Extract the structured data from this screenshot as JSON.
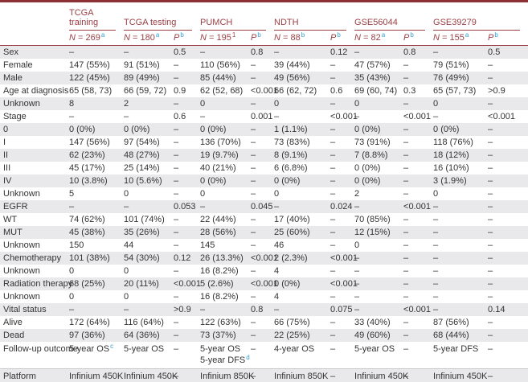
{
  "colors": {
    "maroon": "#9a4045",
    "maroon_dark": "#8c3136",
    "superscript_blue": "#2e9fd4",
    "stripe_gray": "#e9e9eb",
    "text": "#333333"
  },
  "table": {
    "p_header": {
      "label": "P",
      "sup": "b"
    },
    "groups": [
      {
        "name": "TCGA training",
        "n": "N = 269",
        "sup": "a",
        "sup_style": "blue",
        "has_p": false
      },
      {
        "name": "TCGA testing",
        "n": "N = 180",
        "sup": "a",
        "sup_style": "blue",
        "has_p": true
      },
      {
        "name": "PUMCH",
        "n": "N = 195",
        "sup": "1",
        "sup_style": "red",
        "has_p": true
      },
      {
        "name": "NDTH",
        "n": "N = 88",
        "sup": "b",
        "sup_style": "blue",
        "has_p": true
      },
      {
        "name": "GSE56044",
        "n": "N = 82",
        "sup": "a",
        "sup_style": "blue",
        "has_p": true
      },
      {
        "name": "GSE39279",
        "n": "N = 155",
        "sup": "a",
        "sup_style": "blue",
        "has_p": true
      }
    ],
    "rows": [
      {
        "label": "Sex",
        "cells": [
          "–",
          "–",
          "0.5",
          "–",
          "0.8",
          "–",
          "0.12",
          "–",
          "0.8",
          "–",
          "0.5"
        ]
      },
      {
        "label": "Female",
        "cells": [
          "147 (55%)",
          "91 (51%)",
          "–",
          "110 (56%)",
          "–",
          "39 (44%)",
          "–",
          "47 (57%)",
          "–",
          "79 (51%)",
          "–"
        ]
      },
      {
        "label": "Male",
        "cells": [
          "122 (45%)",
          "89 (49%)",
          "–",
          "85 (44%)",
          "–",
          "49 (56%)",
          "–",
          "35 (43%)",
          "–",
          "76 (49%)",
          "–"
        ]
      },
      {
        "label": "Age at diagnosis",
        "cells": [
          "65 (58, 73)",
          "66 (59, 72)",
          "0.9",
          "62 (52, 68)",
          "<0.001",
          "66 (62, 72)",
          "0.6",
          "69 (60, 74)",
          "0.3",
          "65 (57, 73)",
          ">0.9"
        ]
      },
      {
        "label": "Unknown",
        "cells": [
          "8",
          "2",
          "–",
          "0",
          "–",
          "0",
          "–",
          "0",
          "–",
          "0",
          "–"
        ]
      },
      {
        "label": "Stage",
        "cells": [
          "–",
          "–",
          "0.6",
          "–",
          "0.001",
          "–",
          "<0.001",
          "–",
          "<0.001",
          "–",
          "<0.001"
        ]
      },
      {
        "label": "0",
        "cells": [
          "0 (0%)",
          "0 (0%)",
          "–",
          "0 (0%)",
          "–",
          "1 (1.1%)",
          "–",
          "0 (0%)",
          "–",
          "0 (0%)",
          "–"
        ]
      },
      {
        "label": "I",
        "cells": [
          "147 (56%)",
          "97 (54%)",
          "–",
          "136 (70%)",
          "–",
          "73 (83%)",
          "–",
          "73 (91%)",
          "–",
          "118 (76%)",
          "–"
        ]
      },
      {
        "label": "II",
        "cells": [
          "62 (23%)",
          "48 (27%)",
          "–",
          "19 (9.7%)",
          "–",
          "8 (9.1%)",
          "–",
          "7 (8.8%)",
          "–",
          "18 (12%)",
          "–"
        ]
      },
      {
        "label": "III",
        "cells": [
          "45 (17%)",
          "25 (14%)",
          "–",
          "40 (21%)",
          "–",
          "6 (6.8%)",
          "–",
          "0 (0%)",
          "–",
          "16 (10%)",
          "–"
        ]
      },
      {
        "label": "IV",
        "cells": [
          "10 (3.8%)",
          "10 (5.6%)",
          "–",
          "0 (0%)",
          "–",
          "0 (0%)",
          "–",
          "0 (0%)",
          "–",
          "3 (1.9%)",
          "–"
        ]
      },
      {
        "label": "Unknown",
        "cells": [
          "5",
          "0",
          "–",
          "0",
          "–",
          "0",
          "–",
          "2",
          "–",
          "0",
          "–"
        ]
      },
      {
        "label": "EGFR",
        "cells": [
          "–",
          "–",
          "0.053",
          "–",
          "0.045",
          "–",
          "0.024",
          "–",
          "<0.001",
          "–",
          "–"
        ]
      },
      {
        "label": "WT",
        "cells": [
          "74 (62%)",
          "101 (74%)",
          "–",
          "22 (44%)",
          "–",
          "17 (40%)",
          "–",
          "70 (85%)",
          "–",
          "–",
          "–"
        ]
      },
      {
        "label": "MUT",
        "cells": [
          "45 (38%)",
          "35 (26%)",
          "–",
          "28 (56%)",
          "–",
          "25 (60%)",
          "–",
          "12 (15%)",
          "–",
          "–",
          "–"
        ]
      },
      {
        "label": "Unknown",
        "cells": [
          "150",
          "44",
          "–",
          "145",
          "–",
          "46",
          "–",
          "0",
          "–",
          "–",
          "–"
        ]
      },
      {
        "label": "Chemotherapy",
        "cells": [
          "101 (38%)",
          "54 (30%)",
          "0.12",
          "26 (13.3%)",
          "<0.001",
          "2 (2.3%)",
          "<0.001",
          "–",
          "–",
          "–",
          "–"
        ]
      },
      {
        "label": "Unknown",
        "cells": [
          "0",
          "0",
          "–",
          "16 (8.2%)",
          "–",
          "4",
          "–",
          "–",
          "–",
          "–",
          "–"
        ]
      },
      {
        "label": "Radiation therapy",
        "cells": [
          "68 (25%)",
          "20 (11%)",
          "<0.001",
          "5 (2.6%)",
          "<0.001",
          "0 (0%)",
          "<0.001",
          "–",
          "–",
          "–",
          "–"
        ]
      },
      {
        "label": "Unknown",
        "cells": [
          "0",
          "0",
          "–",
          "16 (8.2%)",
          "–",
          "4",
          "–",
          "–",
          "–",
          "–",
          "–"
        ]
      },
      {
        "label": "Vital status",
        "cells": [
          "–",
          "–",
          ">0.9",
          "–",
          "0.8",
          "–",
          "0.075",
          "–",
          "<0.001",
          "–",
          "0.14"
        ]
      },
      {
        "label": "Alive",
        "cells": [
          "172 (64%)",
          "116 (64%)",
          "–",
          "122 (63%)",
          "–",
          "66 (75%)",
          "–",
          "33 (40%)",
          "–",
          "87 (56%)",
          "–"
        ]
      },
      {
        "label": "Dead",
        "cells": [
          "97 (36%)",
          "64 (36%)",
          "–",
          "73 (37%)",
          "–",
          "22 (25%)",
          "–",
          "49 (60%)",
          "–",
          "68 (44%)",
          "–"
        ]
      },
      {
        "label": "Follow-up outcome",
        "tall": true,
        "cells": [
          "5-year OS^c",
          "5-year OS",
          "–",
          [
            "5-year OS",
            "5-year DFS^d"
          ],
          "–",
          "4-year OS",
          "–",
          "5-year OS",
          "–",
          "5-year DFS",
          "–"
        ]
      },
      {
        "label": "Platform",
        "separator": true,
        "cells": [
          "Infinium 450K",
          "Infinium 450K",
          "–",
          "Infinium 850K",
          "–",
          "Infinium 850K",
          "–",
          "Infinium 450K",
          "–",
          "Infinium 450K",
          "–"
        ]
      }
    ]
  }
}
